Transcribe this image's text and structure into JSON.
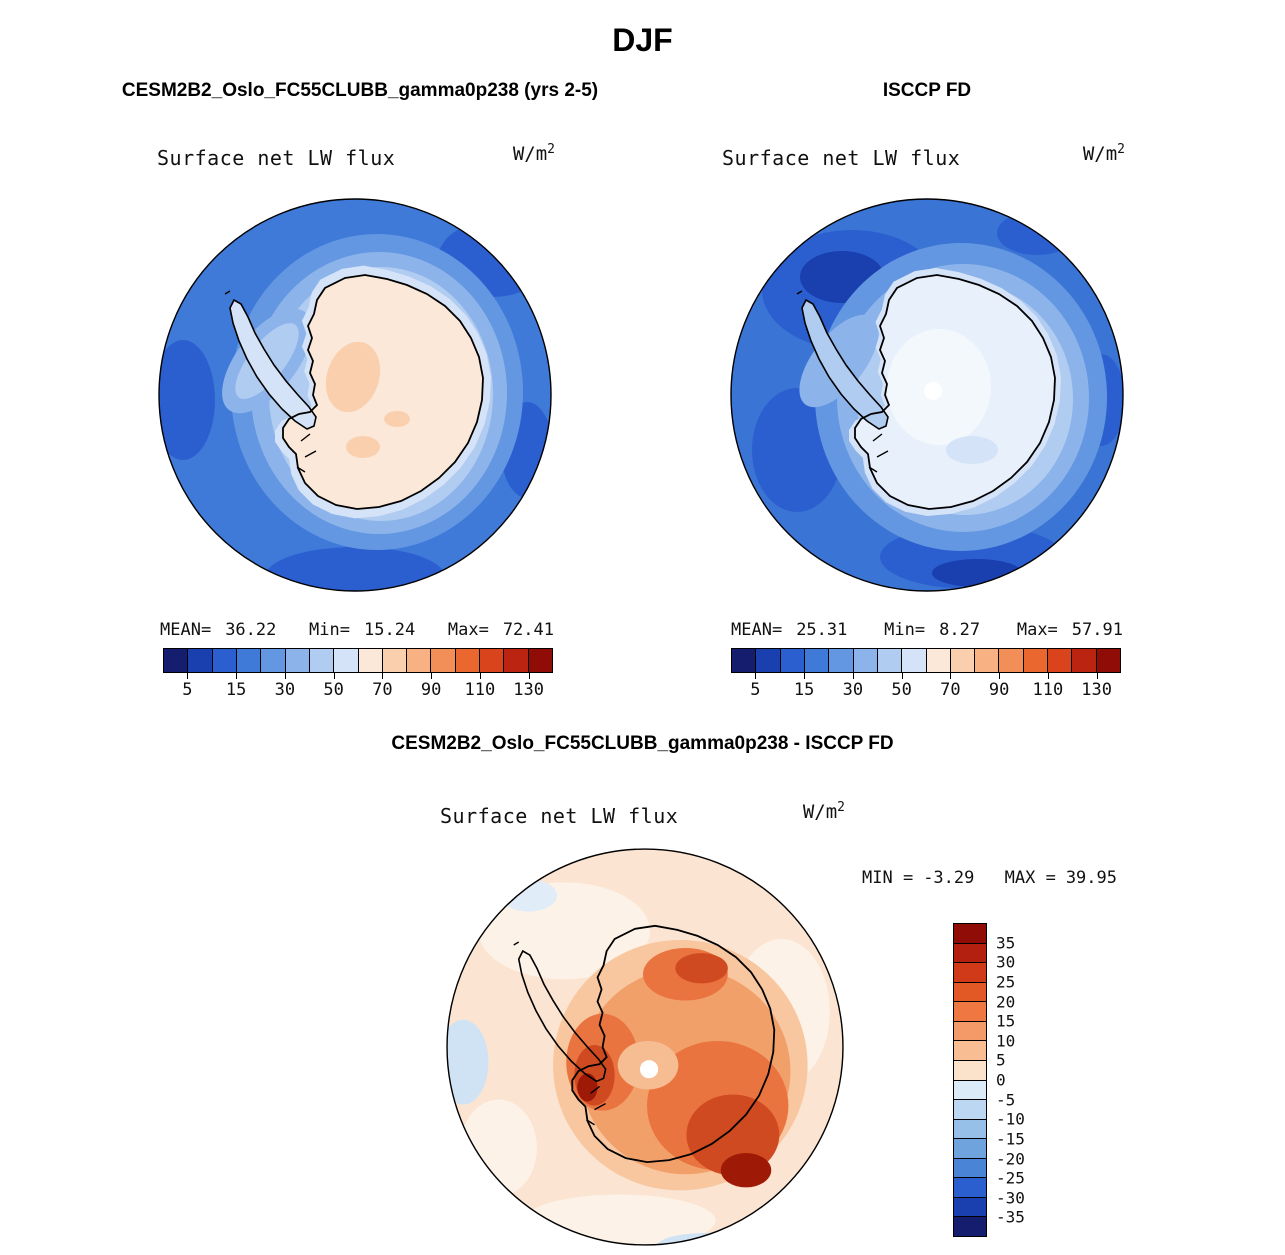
{
  "title": "DJF",
  "panels": {
    "model": {
      "title": "CESM2B2_Oslo_FC55CLUBB_gamma0p238 (yrs 2-5)",
      "field": "Surface net LW flux",
      "units_base": "W/m",
      "units_exp": "2",
      "stats": {
        "mean_label": "MEAN=",
        "mean": "36.22",
        "min_label": "Min=",
        "min": "15.24",
        "max_label": "Max=",
        "max": "72.41"
      }
    },
    "obs": {
      "title": "ISCCP FD",
      "field": "Surface net LW flux",
      "units_base": "W/m",
      "units_exp": "2",
      "stats": {
        "mean_label": "MEAN=",
        "mean": "25.31",
        "min_label": "Min=",
        "min": "8.27",
        "max_label": "Max=",
        "max": "57.91"
      }
    },
    "diff": {
      "title": "CESM2B2_Oslo_FC55CLUBB_gamma0p238 - ISCCP FD",
      "field": "Surface net LW flux",
      "units_base": "W/m",
      "units_exp": "2",
      "stats": {
        "min_label": "MIN =",
        "min": "-3.29",
        "max_label": "MAX =",
        "max": "39.95"
      }
    }
  },
  "flux_colorbar": {
    "colors": [
      "#151d6e",
      "#1a3fae",
      "#2b5fd0",
      "#3f7ad9",
      "#6397e2",
      "#8cb4ea",
      "#b1ccf1",
      "#d5e3f8",
      "#fbe8d9",
      "#f9cfae",
      "#f7b183",
      "#f28e57",
      "#ea6830",
      "#d9441c",
      "#bb2410",
      "#8f0d06"
    ],
    "ticks": [
      "5",
      "15",
      "30",
      "50",
      "70",
      "90",
      "110",
      "130"
    ]
  },
  "diff_colorbar": {
    "colors": [
      "#8f0d06",
      "#b32010",
      "#d13a18",
      "#e35926",
      "#ef7842",
      "#f49a68",
      "#f8bd92",
      "#fbe3cb",
      "#dcebf8",
      "#bcd7f1",
      "#97c0e8",
      "#6fa3de",
      "#4a84d6",
      "#2b5fd0",
      "#1a3fae",
      "#151d6e"
    ],
    "labels": [
      "35",
      "30",
      "25",
      "20",
      "15",
      "10",
      "5",
      "0",
      "-5",
      "-10",
      "-15",
      "-20",
      "-25",
      "-30",
      "-35"
    ]
  },
  "chart_data": [
    {
      "type": "heatmap",
      "subtype": "south-polar-stereographic-map",
      "season": "DJF",
      "title": "CESM2B2_Oslo_FC55CLUBB_gamma0p238 (yrs 2-5)",
      "variable": "Surface net LW flux",
      "units": "W/m^2",
      "region": "Antarctica and Southern Ocean",
      "stats": {
        "mean": 36.22,
        "min": 15.24,
        "max": 72.41
      },
      "colorbar_tick_levels": [
        5,
        15,
        30,
        50,
        70,
        90,
        110,
        130
      ],
      "palette": "dark-blue to dark-red, 16 discrete levels",
      "legend_position": "below"
    },
    {
      "type": "heatmap",
      "subtype": "south-polar-stereographic-map",
      "season": "DJF",
      "title": "ISCCP FD",
      "variable": "Surface net LW flux",
      "units": "W/m^2",
      "region": "Antarctica and Southern Ocean",
      "stats": {
        "mean": 25.31,
        "min": 8.27,
        "max": 57.91
      },
      "colorbar_tick_levels": [
        5,
        15,
        30,
        50,
        70,
        90,
        110,
        130
      ],
      "palette": "dark-blue to dark-red, 16 discrete levels",
      "legend_position": "below"
    },
    {
      "type": "heatmap",
      "subtype": "south-polar-stereographic-map",
      "season": "DJF",
      "title": "CESM2B2_Oslo_FC55CLUBB_gamma0p238 - ISCCP FD",
      "variable": "Surface net LW flux",
      "units": "W/m^2",
      "region": "Antarctica and Southern Ocean",
      "stats": {
        "min": -3.29,
        "max": 39.95
      },
      "colorbar_tick_levels": [
        35,
        30,
        25,
        20,
        15,
        10,
        5,
        0,
        -5,
        -10,
        -15,
        -20,
        -25,
        -30,
        -35
      ],
      "palette": "dark-red (positive) to dark-blue (negative), 16 discrete levels",
      "legend_position": "right"
    }
  ]
}
